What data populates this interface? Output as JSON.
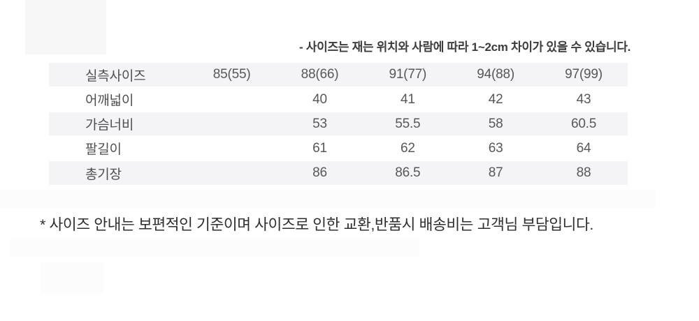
{
  "notes": {
    "measure": "- 사이즈는 재는 위치와 사람에 따라 1~2cm 차이가 있을 수 있습니다.",
    "policy": "* 사이즈 안내는 보편적인 기준이며 사이즈로 인한 교환,반품시 배송비는 고객님 부담입니다."
  },
  "size_table": {
    "header_label": "실측사이즈",
    "sizes": [
      "85(55)",
      "88(66)",
      "91(77)",
      "94(88)",
      "97(99)"
    ],
    "rows": [
      {
        "label": "어깨넓이",
        "values": [
          "",
          "40",
          "41",
          "42",
          "43"
        ]
      },
      {
        "label": "가슴너비",
        "values": [
          "",
          "53",
          "55.5",
          "58",
          "60.5"
        ]
      },
      {
        "label": "팔길이",
        "values": [
          "",
          "61",
          "62",
          "63",
          "64"
        ]
      },
      {
        "label": "총기장",
        "values": [
          "",
          "86",
          "86.5",
          "87",
          "88"
        ]
      }
    ]
  },
  "colors": {
    "row_stripe_bg": "#f4f4f6",
    "table_text": "#57575b",
    "measure_note_text": "#3c3c3e",
    "policy_note_text": "#2e2e30",
    "page_background": "#ffffff"
  }
}
